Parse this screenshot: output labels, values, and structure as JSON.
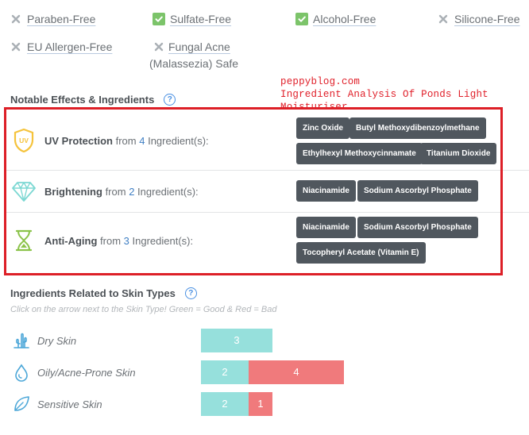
{
  "free_of": [
    {
      "label": "Paraben-Free",
      "status": "no",
      "icon": "x-icon"
    },
    {
      "label": "Sulfate-Free",
      "status": "yes",
      "icon": "check-icon"
    },
    {
      "label": "Alcohol-Free",
      "status": "yes",
      "icon": "check-icon"
    },
    {
      "label": "Silicone-Free",
      "status": "no",
      "icon": "x-icon"
    },
    {
      "label": "EU Allergen-Free",
      "status": "no",
      "icon": "x-icon"
    },
    {
      "label": "Fungal Acne (Malassezia) Safe",
      "line1": "Fungal Acne",
      "line2": "(Malassezia) Safe",
      "status": "no",
      "icon": "x-icon"
    }
  ],
  "watermark": {
    "line1": "peppyblog.com",
    "line2": "Ingredient Analysis Of Ponds Light Moisturiser",
    "color": "#e0202a"
  },
  "notable": {
    "title": "Notable Effects & Ingredients",
    "help": "?",
    "rows": [
      {
        "name": "UV Protection",
        "from": "from",
        "count": "4",
        "suffix": "Ingredient(s):",
        "icon": "uv-shield-icon",
        "tags": [
          "Zinc Oxide",
          "Butyl Methoxydibenzoylmethane",
          "Ethylhexyl Methoxycinnamate",
          "Titanium Dioxide"
        ]
      },
      {
        "name": "Brightening",
        "from": "from",
        "count": "2",
        "suffix": "Ingredient(s):",
        "icon": "diamond-icon",
        "tags": [
          "Niacinamide",
          "Sodium Ascorbyl Phosphate"
        ]
      },
      {
        "name": "Anti-Aging",
        "from": "from",
        "count": "3",
        "suffix": "Ingredient(s):",
        "icon": "hourglass-icon",
        "tags": [
          "Niacinamide",
          "Sodium Ascorbyl Phosphate",
          "Tocopheryl Acetate (Vitamin E)"
        ]
      }
    ]
  },
  "skin_types": {
    "title": "Ingredients Related to Skin Types",
    "help": "?",
    "hint": "Click on the arrow next to the Skin Type! Green = Good & Red = Bad",
    "rows": [
      {
        "label": "Dry Skin",
        "icon": "cactus-icon",
        "good": 3,
        "bad": null,
        "good_text": "3",
        "bad_text": ""
      },
      {
        "label": "Oily/Acne-Prone Skin",
        "icon": "droplet-icon",
        "good": 2,
        "bad": 4,
        "good_text": "2",
        "bad_text": "4"
      },
      {
        "label": "Sensitive Skin",
        "icon": "leaf-icon",
        "good": 2,
        "bad": 1,
        "good_text": "2",
        "bad_text": "1"
      }
    ],
    "colors": {
      "good": "#96e0dc",
      "bad": "#f07a7c"
    }
  },
  "colors": {
    "accent": "#4a90e2",
    "highlight_box": "#dd1f27",
    "tag_bg": "#50575e",
    "check": "#7cc46a"
  }
}
